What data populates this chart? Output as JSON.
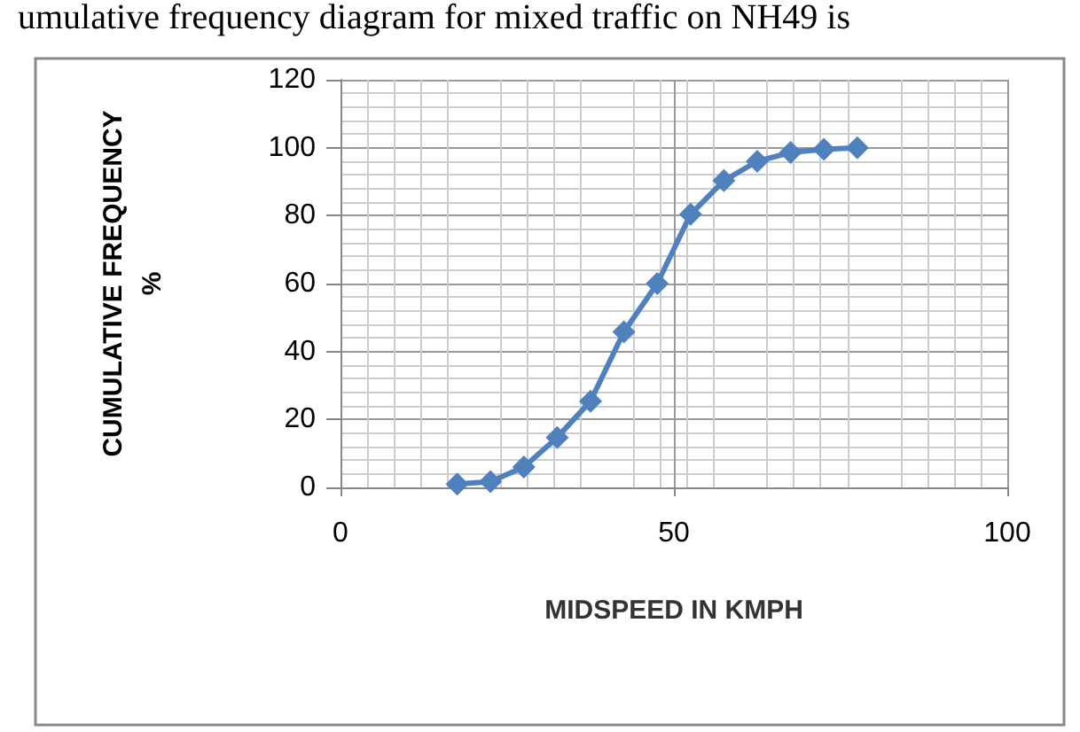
{
  "chart_data": {
    "type": "line",
    "title": "umulative frequency diagram for mixed traffic on NH49 is",
    "xlabel": "MIDSPEED IN KMPH",
    "ylabel": "CUMULATIVE FREQUENCY %",
    "x": [
      17.5,
      22.5,
      27.5,
      32.5,
      37.5,
      42.5,
      47.5,
      52.5,
      57.5,
      62.5,
      67.5,
      72.5,
      77.5
    ],
    "series": [
      {
        "color": "#4f81bd",
        "values": [
          1,
          1.7,
          6,
          14.7,
          25.4,
          45.8,
          60,
          80.4,
          90.3,
          96,
          98.6,
          99.5,
          100
        ]
      }
    ],
    "xlim": [
      0,
      100
    ],
    "xticks": [
      0,
      50,
      100
    ],
    "ylim": [
      0,
      120
    ],
    "yticks": [
      0,
      20,
      40,
      60,
      80,
      100,
      120
    ],
    "grid": true,
    "marker": "diamond",
    "line_style": "solid"
  }
}
